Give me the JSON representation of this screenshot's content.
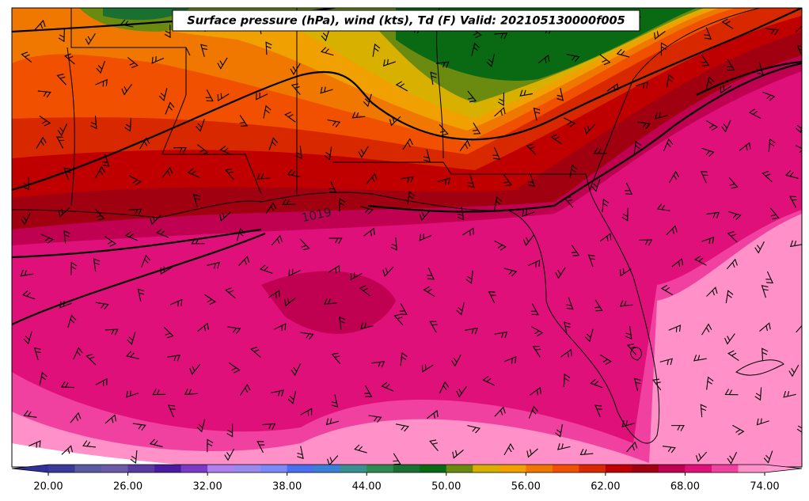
{
  "title": "Surface pressure (hPa), wind (kts), Td (F) Valid: 202105130000f005",
  "contour_labels": [
    1019
  ],
  "colorbar": {
    "bounds": [
      20,
      22,
      24,
      26,
      28,
      30,
      32,
      34,
      36,
      38,
      40,
      42,
      44,
      46,
      48,
      50,
      52,
      54,
      56,
      58,
      60,
      62,
      64,
      66,
      68,
      70,
      72,
      74
    ],
    "colors": [
      "#3a3a9a",
      "#5a5aa0",
      "#6a5aa8",
      "#5a3aa0",
      "#4a1aa0",
      "#7a3ac8",
      "#b080f0",
      "#9a8af0",
      "#7a8af8",
      "#4a70f0",
      "#3a80d8",
      "#3a9090",
      "#2e8a50",
      "#1a7030",
      "#0a6a14",
      "#6a8a10",
      "#d8b000",
      "#f0a000",
      "#f07800",
      "#f05000",
      "#d82800",
      "#c00000",
      "#a00010",
      "#c00050",
      "#e0107a",
      "#f040a0",
      "#ff90c8"
    ],
    "extend_colors": [
      "#30309a",
      "#ff9ad0"
    ],
    "ticks": [
      {
        "value": 20,
        "label": "20.00"
      },
      {
        "value": 26,
        "label": "26.00"
      },
      {
        "value": 32,
        "label": "32.00"
      },
      {
        "value": 38,
        "label": "38.00"
      },
      {
        "value": 44,
        "label": "44.00"
      },
      {
        "value": 50,
        "label": "50.00"
      },
      {
        "value": 56,
        "label": "56.00"
      },
      {
        "value": 62,
        "label": "62.00"
      },
      {
        "value": 68,
        "label": "68.00"
      },
      {
        "value": 74,
        "label": "74.00"
      }
    ]
  }
}
